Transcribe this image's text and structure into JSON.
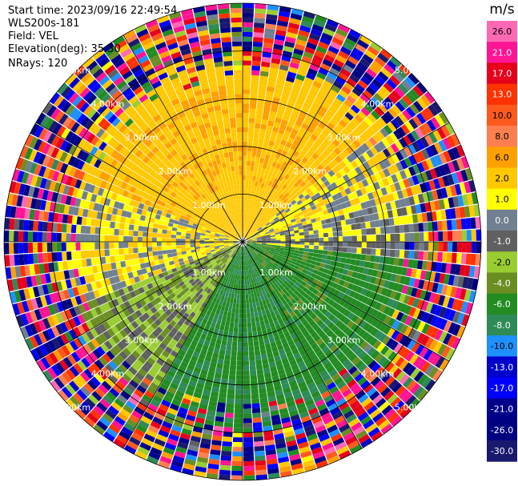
{
  "header": {
    "start_time": "Start time: 2023/09/16 22:49:54",
    "instrument": "WLS200s-181",
    "field": "Field: VEL",
    "elevation": "Elevation(deg): 35.30",
    "nrays": "NRays: 120"
  },
  "chart_data": {
    "type": "heatmap",
    "projection": "polar-ppi",
    "field": "VEL",
    "units": "m/s",
    "elevation_deg": 35.3,
    "n_rays": 120,
    "max_range_km": 5.0,
    "range_ring_labels": [
      "1.00km",
      "2.00km",
      "3.00km",
      "4.00km",
      "5.00km"
    ],
    "range_rings_km": [
      1,
      2,
      3,
      4,
      5
    ],
    "colorbar": {
      "label": "m/s",
      "ticks": [
        "26.0",
        "21.0",
        "17.0",
        "13.0",
        "10.0",
        "8.0",
        "6.0",
        "2.0",
        "1.0",
        "0.0",
        "-1.0",
        "-2.0",
        "-4.0",
        "-6.0",
        "-8.0",
        "-10.0",
        "-13.0",
        "-17.0",
        "-21.0",
        "-26.0",
        "-30.0"
      ],
      "levels": [
        30,
        26,
        21,
        17,
        13,
        10,
        8,
        6,
        2,
        1,
        0,
        -1,
        -2,
        -4,
        -6,
        -8,
        -10,
        -13,
        -17,
        -21,
        -26,
        -30
      ],
      "colors": [
        "#ff69b4",
        "#ff1493",
        "#e6001c",
        "#ff3300",
        "#ff5a1e",
        "#ff7f50",
        "#ffa000",
        "#ffc800",
        "#ffff00",
        "#708090",
        "#606060",
        "#9acd32",
        "#6b8e23",
        "#228b22",
        "#2e8b57",
        "#1e90ff",
        "#0000cd",
        "#0000ff",
        "#00008b",
        "#000080",
        "#191970"
      ]
    },
    "pattern": {
      "inner_near_km": 1.8,
      "sectors": [
        {
          "from_deg": 290,
          "to_deg": 50,
          "value": 4.0
        },
        {
          "from_deg": 50,
          "to_deg": 75,
          "value": 1.5
        },
        {
          "from_deg": 75,
          "to_deg": 95,
          "value": 0.5
        },
        {
          "from_deg": 95,
          "to_deg": 150,
          "value": -5.0
        },
        {
          "from_deg": 150,
          "to_deg": 210,
          "value": -5.5
        },
        {
          "from_deg": 210,
          "to_deg": 250,
          "value": -1.5
        },
        {
          "from_deg": 250,
          "to_deg": 290,
          "value": 1.5
        }
      ],
      "outer_noise_from_km": 3.3
    }
  }
}
